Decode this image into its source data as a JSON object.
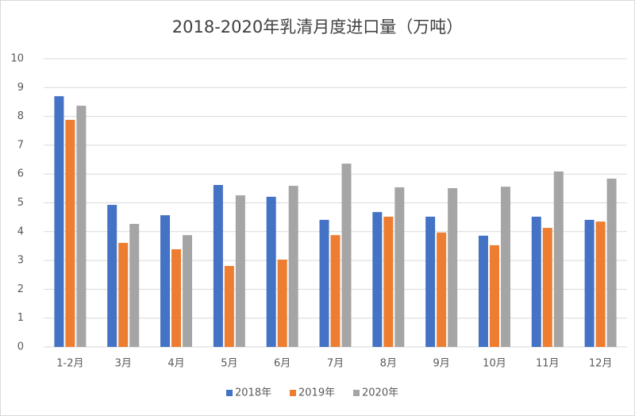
{
  "chart_data": {
    "type": "bar",
    "title": "2018-2020年乳清月度进口量（万吨）",
    "categories": [
      "1-2月",
      "3月",
      "4月",
      "5月",
      "6月",
      "7月",
      "8月",
      "9月",
      "10月",
      "11月",
      "12月"
    ],
    "series": [
      {
        "name": "2018年",
        "color": "#4472c4",
        "values": [
          8.7,
          4.93,
          4.57,
          5.62,
          5.21,
          4.41,
          4.68,
          4.52,
          3.86,
          4.52,
          4.41
        ]
      },
      {
        "name": "2019年",
        "color": "#ed7d31",
        "values": [
          7.88,
          3.61,
          3.39,
          2.81,
          3.03,
          3.88,
          4.52,
          3.97,
          3.53,
          4.13,
          4.35
        ]
      },
      {
        "name": "2020年",
        "color": "#a5a5a5",
        "values": [
          8.37,
          4.27,
          3.88,
          5.26,
          5.59,
          6.36,
          5.54,
          5.51,
          5.56,
          6.09,
          5.84
        ]
      }
    ],
    "ylim": [
      0,
      10
    ],
    "yticks": [
      0,
      1,
      2,
      3,
      4,
      5,
      6,
      7,
      8,
      9,
      10
    ],
    "grid": true,
    "legend": "bottom"
  }
}
